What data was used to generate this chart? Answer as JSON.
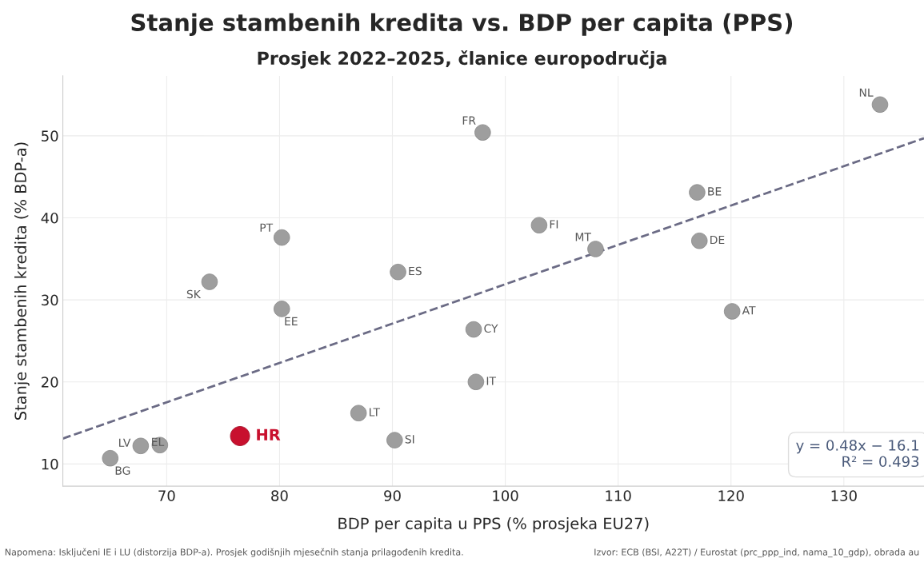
{
  "chart_data": {
    "type": "scatter",
    "title": "Stanje stambenih kredita vs. BDP per capita (PPS)",
    "subtitle": "Prosjek 2022–2025, članice europodručja",
    "xlabel": "BDP per capita u PPS (% prosjeka EU27)",
    "ylabel": "Stanje stambenih kredita (% BDP-a)",
    "xlim": [
      60.8,
      137.1
    ],
    "ylim": [
      7.3,
      57.3
    ],
    "xticks": [
      70,
      80,
      90,
      100,
      110,
      120,
      130
    ],
    "yticks": [
      10,
      20,
      30,
      40,
      50
    ],
    "grid": true,
    "marker": "circle",
    "series": [
      {
        "color": "#9e9e9e",
        "x": [
          65.0,
          67.7,
          69.4,
          73.8,
          80.2,
          80.2,
          87.0,
          90.2,
          90.5,
          97.2,
          97.4,
          98.0,
          103.0,
          108.0,
          117.0,
          117.2,
          120.1,
          133.2
        ],
        "values": [
          10.7,
          12.2,
          12.3,
          32.2,
          37.6,
          28.9,
          16.2,
          12.9,
          33.4,
          26.4,
          20.0,
          50.4,
          39.1,
          36.2,
          43.1,
          37.2,
          28.6,
          53.8
        ]
      },
      {
        "color": "#c8102e",
        "x": [
          76.5
        ],
        "values": [
          13.4
        ]
      },
      {
        "type": "line",
        "color": "#6b6b85",
        "line_style": "dashed",
        "marker": "none",
        "x": [
          60.8,
          137.1
        ],
        "values": [
          13.1,
          49.7
        ]
      }
    ],
    "annotations": [
      {
        "text": "BG",
        "x": 65.0,
        "y": 10.7
      },
      {
        "text": "LV",
        "x": 67.7,
        "y": 12.2
      },
      {
        "text": "EL",
        "x": 69.4,
        "y": 12.3
      },
      {
        "text": "SK",
        "x": 73.8,
        "y": 32.2
      },
      {
        "text": "PT",
        "x": 80.2,
        "y": 37.6
      },
      {
        "text": "EE",
        "x": 80.2,
        "y": 28.9
      },
      {
        "text": "LT",
        "x": 87.0,
        "y": 16.2
      },
      {
        "text": "SI",
        "x": 90.2,
        "y": 12.9
      },
      {
        "text": "ES",
        "x": 90.5,
        "y": 33.4
      },
      {
        "text": "CY",
        "x": 97.2,
        "y": 26.4
      },
      {
        "text": "IT",
        "x": 97.4,
        "y": 20.0
      },
      {
        "text": "FR",
        "x": 98.0,
        "y": 50.4
      },
      {
        "text": "FI",
        "x": 103.0,
        "y": 39.1
      },
      {
        "text": "MT",
        "x": 108.0,
        "y": 36.2
      },
      {
        "text": "BE",
        "x": 117.0,
        "y": 43.1
      },
      {
        "text": "DE",
        "x": 117.2,
        "y": 37.2
      },
      {
        "text": "AT",
        "x": 120.1,
        "y": 28.6
      },
      {
        "text": "NL",
        "x": 133.2,
        "y": 53.8
      },
      {
        "text": "HR",
        "x": 76.5,
        "y": 13.4
      },
      "y = 0.48x − 16.1\nR² = 0.493",
      "Napomena: Isključeni IE i LU (distorzija BDP-a). Prosjek godišnjih mjesečnih stanja prilagođenih kredita.",
      "Izvor: ECB (BSI, A22T) / Eurostat (prc_ppp_ind, nama_10_gdp), obrada au"
    ]
  }
}
